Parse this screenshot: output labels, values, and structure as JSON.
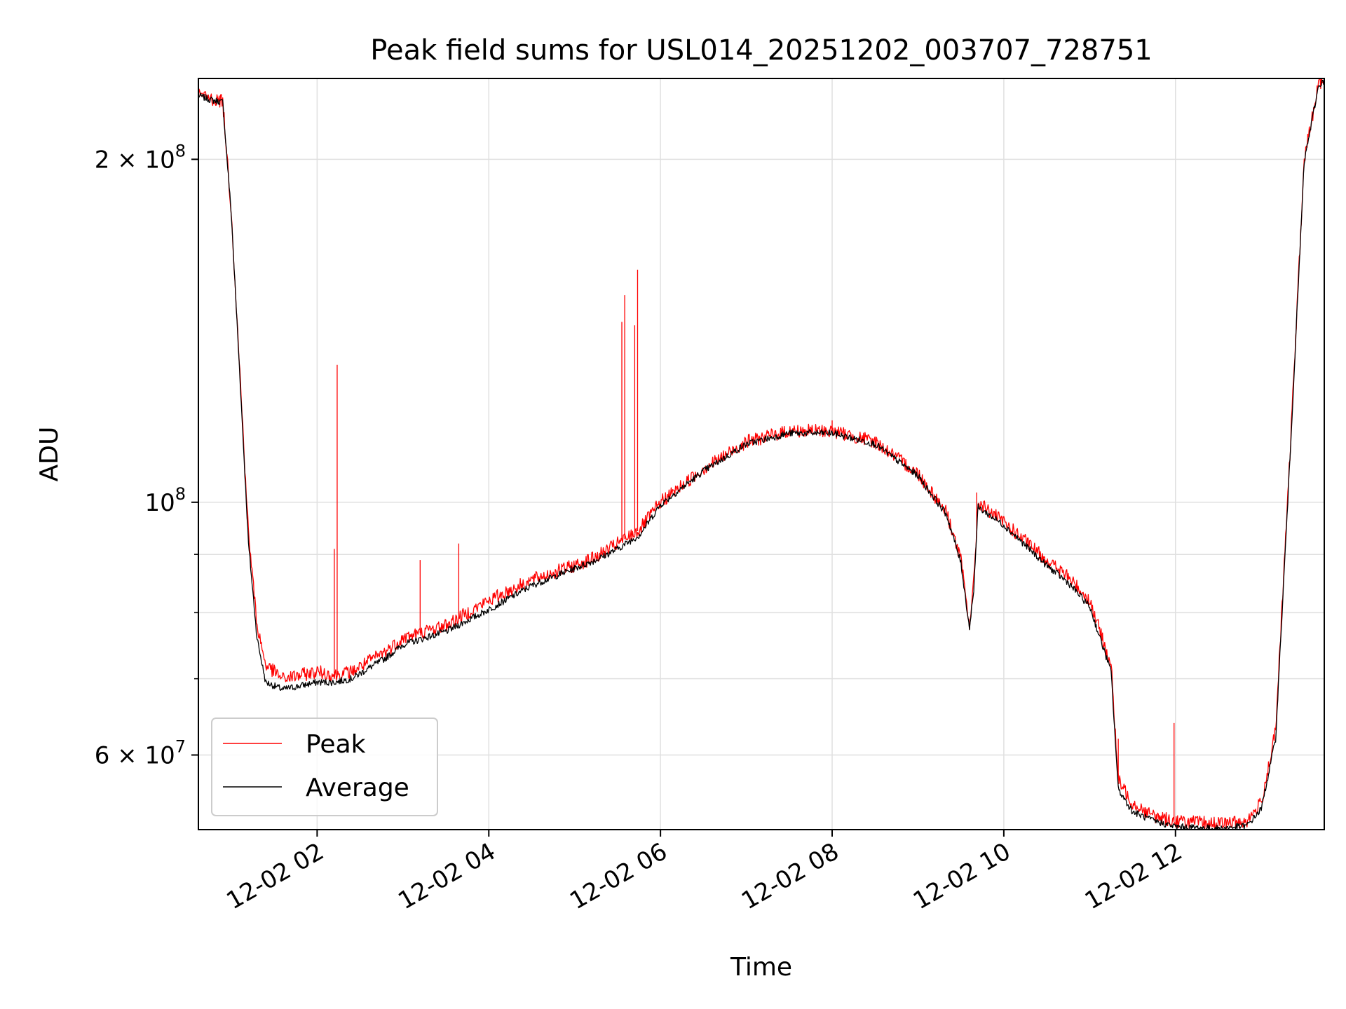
{
  "chart_data": {
    "type": "line",
    "title": "Peak field sums for USL014_20251202_003707_728751",
    "xlabel": "Time",
    "ylabel": "ADU",
    "yscale": "log",
    "grid": true,
    "legend_position": "lower-left",
    "xlim": [
      "2025-12-02 00:37",
      "2025-12-02 13:44"
    ],
    "ylim": [
      51600000,
      235500000
    ],
    "x_ticks": [
      {
        "value": "2025-12-02 02:00",
        "label": "12-02 02"
      },
      {
        "value": "2025-12-02 04:00",
        "label": "12-02 04"
      },
      {
        "value": "2025-12-02 06:00",
        "label": "12-02 06"
      },
      {
        "value": "2025-12-02 08:00",
        "label": "12-02 08"
      },
      {
        "value": "2025-12-02 10:00",
        "label": "12-02 10"
      },
      {
        "value": "2025-12-02 12:00",
        "label": "12-02 12"
      }
    ],
    "y_major_ticks": [
      {
        "value": 60000000,
        "mantissa": "6",
        "label": "6 × 10⁷"
      },
      {
        "value": 100000000,
        "mantissa": "",
        "label": "10⁸"
      },
      {
        "value": 200000000,
        "mantissa": "2",
        "label": "2 × 10⁸"
      }
    ],
    "y_minor_ticks": [
      70000000,
      80000000,
      90000000
    ],
    "series": [
      {
        "name": "Peak",
        "color": "#ff0000",
        "x": [
          "2025-12-02 00:37",
          "2025-12-02 00:46",
          "2025-12-02 00:54",
          "2025-12-02 01:00",
          "2025-12-02 01:06",
          "2025-12-02 01:12",
          "2025-12-02 01:18",
          "2025-12-02 01:24",
          "2025-12-02 01:36",
          "2025-12-02 01:48",
          "2025-12-02 02:00",
          "2025-12-02 02:12",
          "2025-12-02 02:24",
          "2025-12-02 02:36",
          "2025-12-02 02:48",
          "2025-12-02 03:00",
          "2025-12-02 03:30",
          "2025-12-02 04:00",
          "2025-12-02 04:30",
          "2025-12-02 05:00",
          "2025-12-02 05:15",
          "2025-12-02 05:30",
          "2025-12-02 05:45",
          "2025-12-02 06:00",
          "2025-12-02 06:30",
          "2025-12-02 07:00",
          "2025-12-02 07:30",
          "2025-12-02 08:00",
          "2025-12-02 08:30",
          "2025-12-02 09:00",
          "2025-12-02 09:20",
          "2025-12-02 09:30",
          "2025-12-02 09:36",
          "2025-12-02 09:39",
          "2025-12-02 09:42",
          "2025-12-02 10:00",
          "2025-12-02 10:30",
          "2025-12-02 10:45",
          "2025-12-02 11:00",
          "2025-12-02 11:15",
          "2025-12-02 11:20",
          "2025-12-02 11:30",
          "2025-12-02 11:45",
          "2025-12-02 12:00",
          "2025-12-02 12:30",
          "2025-12-02 12:50",
          "2025-12-02 13:00",
          "2025-12-02 13:10",
          "2025-12-02 13:20",
          "2025-12-02 13:30",
          "2025-12-02 13:40",
          "2025-12-02 13:44"
        ],
        "y": [
          228000000,
          226000000,
          225000000,
          180000000,
          130000000,
          94000000,
          78000000,
          72000000,
          70000000,
          70500000,
          71000000,
          70500000,
          71000000,
          72500000,
          74000000,
          76000000,
          78000000,
          82000000,
          85500000,
          88000000,
          89500000,
          92000000,
          94500000,
          100000000,
          107000000,
          113000000,
          115500000,
          115500000,
          113000000,
          106000000,
          98000000,
          89000000,
          78000000,
          85000000,
          100000000,
          96000000,
          89000000,
          86000000,
          82000000,
          72000000,
          57000000,
          54500000,
          53000000,
          52500000,
          52200000,
          52500000,
          54500000,
          63000000,
          110000000,
          200000000,
          233000000,
          235000000
        ],
        "spikes": [
          {
            "x": "2025-12-02 02:14",
            "y": 132000000
          },
          {
            "x": "2025-12-02 02:12",
            "y": 91000000
          },
          {
            "x": "2025-12-02 03:12",
            "y": 89000000
          },
          {
            "x": "2025-12-02 03:39",
            "y": 92000000
          },
          {
            "x": "2025-12-02 05:33",
            "y": 144000000
          },
          {
            "x": "2025-12-02 05:35",
            "y": 152000000
          },
          {
            "x": "2025-12-02 05:42",
            "y": 143000000
          },
          {
            "x": "2025-12-02 05:44",
            "y": 160000000
          },
          {
            "x": "2025-12-02 08:00",
            "y": 118000000
          },
          {
            "x": "2025-12-02 09:41",
            "y": 102000000
          },
          {
            "x": "2025-12-02 11:59",
            "y": 64000000
          },
          {
            "x": "2025-12-02 11:20",
            "y": 62000000
          }
        ]
      },
      {
        "name": "Average",
        "color": "#000000",
        "x": [
          "2025-12-02 00:37",
          "2025-12-02 00:46",
          "2025-12-02 00:54",
          "2025-12-02 01:00",
          "2025-12-02 01:06",
          "2025-12-02 01:12",
          "2025-12-02 01:18",
          "2025-12-02 01:24",
          "2025-12-02 01:36",
          "2025-12-02 01:48",
          "2025-12-02 02:00",
          "2025-12-02 02:12",
          "2025-12-02 02:24",
          "2025-12-02 02:36",
          "2025-12-02 02:48",
          "2025-12-02 03:00",
          "2025-12-02 03:30",
          "2025-12-02 04:00",
          "2025-12-02 04:30",
          "2025-12-02 05:00",
          "2025-12-02 05:15",
          "2025-12-02 05:30",
          "2025-12-02 05:45",
          "2025-12-02 06:00",
          "2025-12-02 06:30",
          "2025-12-02 07:00",
          "2025-12-02 07:30",
          "2025-12-02 08:00",
          "2025-12-02 08:30",
          "2025-12-02 09:00",
          "2025-12-02 09:20",
          "2025-12-02 09:30",
          "2025-12-02 09:36",
          "2025-12-02 09:39",
          "2025-12-02 09:42",
          "2025-12-02 10:00",
          "2025-12-02 10:30",
          "2025-12-02 10:45",
          "2025-12-02 11:00",
          "2025-12-02 11:15",
          "2025-12-02 11:20",
          "2025-12-02 11:30",
          "2025-12-02 11:45",
          "2025-12-02 12:00",
          "2025-12-02 12:30",
          "2025-12-02 12:50",
          "2025-12-02 13:00",
          "2025-12-02 13:10",
          "2025-12-02 13:20",
          "2025-12-02 13:30",
          "2025-12-02 13:40",
          "2025-12-02 13:44"
        ],
        "y": [
          227500000,
          225500000,
          224500000,
          179000000,
          129000000,
          92000000,
          76000000,
          69500000,
          68500000,
          69000000,
          69500000,
          69500000,
          70000000,
          71500000,
          73000000,
          75000000,
          77000000,
          80500000,
          84500000,
          87500000,
          89000000,
          91000000,
          93500000,
          99500000,
          106500000,
          112500000,
          115000000,
          115000000,
          112500000,
          105500000,
          97500000,
          88500000,
          77500000,
          84000000,
          99000000,
          95500000,
          88000000,
          85000000,
          81000000,
          71000000,
          56000000,
          53500000,
          52500000,
          51900000,
          51700000,
          52000000,
          53800000,
          62000000,
          109000000,
          199000000,
          232000000,
          234500000
        ]
      }
    ]
  }
}
